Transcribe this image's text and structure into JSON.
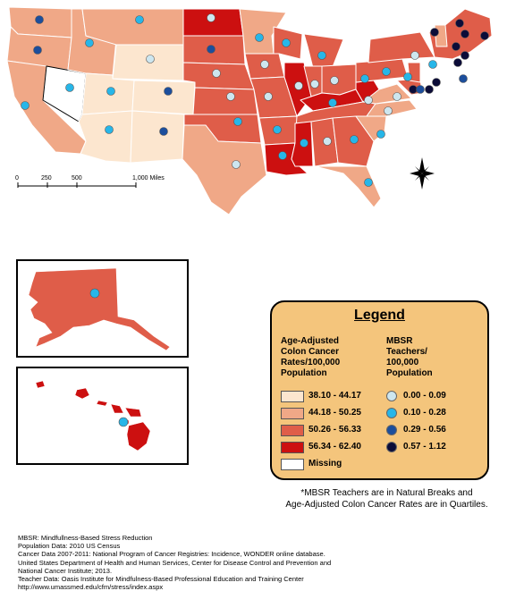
{
  "scale_bar": {
    "labels": [
      "0",
      "250",
      "500",
      "1,000 Miles"
    ]
  },
  "legend": {
    "title": "Legend",
    "colon_heading": [
      "Age-Adjusted",
      "Colon Cancer",
      "Rates/100,000",
      "Population"
    ],
    "teacher_heading": [
      "MBSR",
      "Teachers/",
      "100,000",
      "Population"
    ],
    "rate_classes": [
      {
        "label": "38.10 - 44.17",
        "color": "#fce6cf"
      },
      {
        "label": "44.18 - 50.25",
        "color": "#f0a887"
      },
      {
        "label": "50.26 - 56.33",
        "color": "#df5d49"
      },
      {
        "label": "56.34 - 62.40",
        "color": "#cc1010"
      },
      {
        "label": "Missing",
        "color": "#ffffff"
      }
    ],
    "teacher_classes": [
      {
        "label": "0.00 - 0.09",
        "color": "#cde6ef"
      },
      {
        "label": "0.10 - 0.28",
        "color": "#27b6e8"
      },
      {
        "label": "0.29 - 0.56",
        "color": "#1c4e9c"
      },
      {
        "label": "0.57 - 1.12",
        "color": "#0b0c38"
      }
    ]
  },
  "footnote": [
    "*MBSR Teachers are in Natural Breaks and",
    "Age-Adjusted Colon Cancer Rates are in Quartiles."
  ],
  "sources": [
    "MBSR: Mindfullness-Based Stress Reduction",
    "Population Data: 2010 US Census",
    "Cancer Data 2007-2011: National Program of Cancer Registries: Incidence, WONDER online database.",
    "United States Department of Health and Human Services, Center for Disease Control and Prevention and",
    "National Cancer Institute; 2013.",
    "Teacher Data: Oasis Institute for Mindfulness-Based Professional Education and Training Center",
    "http://www.umassmed.edu/cfm/stress/index.aspx"
  ]
}
